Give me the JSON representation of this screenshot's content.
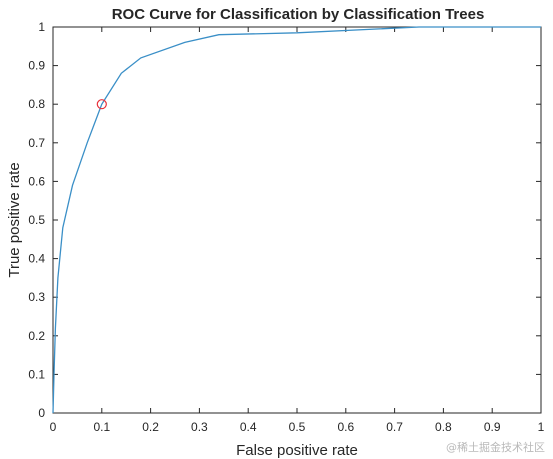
{
  "chart_data": {
    "type": "line",
    "title": "ROC Curve for Classification by Classification Trees",
    "xlabel": "False positive rate",
    "ylabel": "True positive rate",
    "xlim": [
      0,
      1
    ],
    "ylim": [
      0,
      1
    ],
    "xticks": [
      0,
      0.1,
      0.2,
      0.3,
      0.4,
      0.5,
      0.6,
      0.7,
      0.8,
      0.9,
      1
    ],
    "xtick_labels": [
      "0",
      "0.1",
      "0.2",
      "0.3",
      "0.4",
      "0.5",
      "0.6",
      "0.7",
      "0.8",
      "0.9",
      "1"
    ],
    "yticks": [
      0,
      0.1,
      0.2,
      0.3,
      0.4,
      0.5,
      0.6,
      0.7,
      0.8,
      0.9,
      1
    ],
    "ytick_labels": [
      "0",
      "0.1",
      "0.2",
      "0.3",
      "0.4",
      "0.5",
      "0.6",
      "0.7",
      "0.8",
      "0.9",
      "1"
    ],
    "grid": false,
    "series": [
      {
        "color": "#3a8fc7",
        "x": [
          0,
          0.002,
          0.005,
          0.01,
          0.02,
          0.04,
          0.07,
          0.1,
          0.14,
          0.18,
          0.27,
          0.34,
          0.5,
          0.75,
          1.0
        ],
        "y": [
          0,
          0.1,
          0.22,
          0.35,
          0.48,
          0.59,
          0.7,
          0.8,
          0.88,
          0.92,
          0.96,
          0.98,
          0.985,
          1.0,
          1.0
        ]
      }
    ],
    "annotations": [
      {
        "type": "marker",
        "shape": "circle",
        "x": 0.1,
        "y": 0.8,
        "color": "#e8303a"
      }
    ]
  },
  "watermark": "@稀土掘金技术社区"
}
